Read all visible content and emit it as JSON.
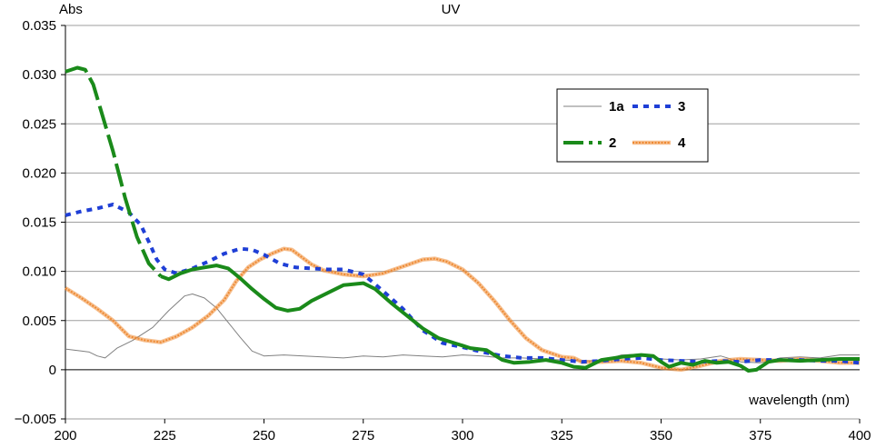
{
  "chart_data": {
    "type": "line",
    "title": "UV",
    "ylabel": "Abs",
    "xlabel": "wavelength (nm)",
    "xlim": [
      200,
      400
    ],
    "ylim": [
      -0.005,
      0.035
    ],
    "x_ticks": [
      200,
      225,
      250,
      275,
      300,
      325,
      350,
      375,
      400
    ],
    "y_ticks": [
      -0.005,
      0,
      0.005,
      0.01,
      0.015,
      0.02,
      0.025,
      0.03,
      0.035
    ],
    "x_tick_labels": [
      "200",
      "225",
      "250",
      "275",
      "300",
      "325",
      "350",
      "375",
      "400"
    ],
    "y_tick_labels": [
      "−0.005",
      "0",
      "0.005",
      "0.010",
      "0.015",
      "0.020",
      "0.025",
      "0.030",
      "0.035"
    ],
    "grid": "horizontal",
    "legend_position": "top-right",
    "series": [
      {
        "name": "1a",
        "color": "#808080",
        "style": "thin-solid",
        "points": [
          [
            200,
            0.0021
          ],
          [
            204,
            0.0019
          ],
          [
            206,
            0.0018
          ],
          [
            208,
            0.0014
          ],
          [
            210,
            0.0012
          ],
          [
            213,
            0.0022
          ],
          [
            217,
            0.003
          ],
          [
            222,
            0.0043
          ],
          [
            226,
            0.006
          ],
          [
            230,
            0.0075
          ],
          [
            232,
            0.0077
          ],
          [
            235,
            0.0073
          ],
          [
            238,
            0.0063
          ],
          [
            241,
            0.0048
          ],
          [
            244,
            0.0033
          ],
          [
            247,
            0.0019
          ],
          [
            250,
            0.0014
          ],
          [
            255,
            0.0015
          ],
          [
            260,
            0.0014
          ],
          [
            270,
            0.0012
          ],
          [
            275,
            0.0014
          ],
          [
            280,
            0.0013
          ],
          [
            285,
            0.0015
          ],
          [
            290,
            0.0014
          ],
          [
            295,
            0.0013
          ],
          [
            300,
            0.0015
          ],
          [
            305,
            0.0014
          ],
          [
            310,
            0.0012
          ],
          [
            315,
            0.0012
          ],
          [
            320,
            0.0011
          ],
          [
            325,
            0.001
          ],
          [
            330,
            0.0009
          ],
          [
            335,
            0.0009
          ],
          [
            340,
            0.0015
          ],
          [
            345,
            0.0016
          ],
          [
            350,
            0.0011
          ],
          [
            355,
            0.001
          ],
          [
            360,
            0.0011
          ],
          [
            365,
            0.0014
          ],
          [
            370,
            0.0008
          ],
          [
            375,
            0.0007
          ],
          [
            380,
            0.0012
          ],
          [
            385,
            0.0013
          ],
          [
            390,
            0.0012
          ],
          [
            395,
            0.0015
          ],
          [
            400,
            0.0015
          ]
        ]
      },
      {
        "name": "2",
        "color": "#1a8a1a",
        "style": "thick-dash-then-solid",
        "points": [
          [
            200,
            0.0303
          ],
          [
            203,
            0.0307
          ],
          [
            205,
            0.0305
          ],
          [
            207,
            0.029
          ],
          [
            209,
            0.0263
          ],
          [
            212,
            0.0222
          ],
          [
            215,
            0.0175
          ],
          [
            218,
            0.0135
          ],
          [
            221,
            0.0108
          ],
          [
            224,
            0.0095
          ],
          [
            226,
            0.0092
          ],
          [
            229,
            0.0098
          ],
          [
            232,
            0.0102
          ],
          [
            235,
            0.0104
          ],
          [
            238,
            0.0106
          ],
          [
            241,
            0.0103
          ],
          [
            244,
            0.0093
          ],
          [
            247,
            0.0082
          ],
          [
            250,
            0.0072
          ],
          [
            253,
            0.0063
          ],
          [
            256,
            0.006
          ],
          [
            259,
            0.0062
          ],
          [
            262,
            0.007
          ],
          [
            266,
            0.0078
          ],
          [
            270,
            0.0086
          ],
          [
            275,
            0.0088
          ],
          [
            278,
            0.0082
          ],
          [
            282,
            0.0068
          ],
          [
            286,
            0.0055
          ],
          [
            290,
            0.0042
          ],
          [
            294,
            0.0032
          ],
          [
            298,
            0.0027
          ],
          [
            302,
            0.0022
          ],
          [
            306,
            0.002
          ],
          [
            310,
            0.001
          ],
          [
            313,
            0.0007
          ],
          [
            317,
            0.0008
          ],
          [
            321,
            0.001
          ],
          [
            325,
            0.0007
          ],
          [
            328,
            0.0003
          ],
          [
            331,
            0.0002
          ],
          [
            335,
            0.001
          ],
          [
            340,
            0.0013
          ],
          [
            345,
            0.0015
          ],
          [
            348,
            0.0014
          ],
          [
            350,
            0.0008
          ],
          [
            352,
            0.0003
          ],
          [
            355,
            0.0007
          ],
          [
            358,
            0.0005
          ],
          [
            361,
            0.0009
          ],
          [
            364,
            0.0007
          ],
          [
            367,
            0.0008
          ],
          [
            370,
            0.0004
          ],
          [
            372,
            -0.0001
          ],
          [
            374,
            0.0
          ],
          [
            377,
            0.0008
          ],
          [
            380,
            0.001
          ],
          [
            385,
            0.0009
          ],
          [
            390,
            0.001
          ],
          [
            395,
            0.0011
          ],
          [
            400,
            0.0011
          ]
        ]
      },
      {
        "name": "3",
        "color": "#1f3fd6",
        "style": "dotted",
        "points": [
          [
            200,
            0.0157
          ],
          [
            204,
            0.0161
          ],
          [
            208,
            0.0164
          ],
          [
            212,
            0.0168
          ],
          [
            216,
            0.016
          ],
          [
            219,
            0.0147
          ],
          [
            221,
            0.013
          ],
          [
            223,
            0.0112
          ],
          [
            225,
            0.0102
          ],
          [
            228,
            0.0098
          ],
          [
            232,
            0.0103
          ],
          [
            236,
            0.011
          ],
          [
            240,
            0.0118
          ],
          [
            244,
            0.0123
          ],
          [
            247,
            0.0122
          ],
          [
            250,
            0.0117
          ],
          [
            254,
            0.0108
          ],
          [
            258,
            0.0104
          ],
          [
            262,
            0.0103
          ],
          [
            266,
            0.0102
          ],
          [
            270,
            0.0102
          ],
          [
            275,
            0.0097
          ],
          [
            280,
            0.008
          ],
          [
            285,
            0.0062
          ],
          [
            290,
            0.004
          ],
          [
            295,
            0.0027
          ],
          [
            300,
            0.0023
          ],
          [
            305,
            0.0018
          ],
          [
            310,
            0.0014
          ],
          [
            315,
            0.0012
          ],
          [
            320,
            0.0012
          ],
          [
            325,
            0.001
          ],
          [
            330,
            0.0008
          ],
          [
            335,
            0.0009
          ],
          [
            340,
            0.0011
          ],
          [
            345,
            0.0012
          ],
          [
            350,
            0.001
          ],
          [
            355,
            0.0009
          ],
          [
            360,
            0.0008
          ],
          [
            365,
            0.0009
          ],
          [
            370,
            0.0008
          ],
          [
            375,
            0.001
          ],
          [
            380,
            0.001
          ],
          [
            385,
            0.001
          ],
          [
            390,
            0.0009
          ],
          [
            395,
            0.0009
          ],
          [
            400,
            0.0007
          ]
        ]
      },
      {
        "name": "4",
        "color": "#ee8a33",
        "style": "thick-fuzzy",
        "points": [
          [
            200,
            0.0083
          ],
          [
            204,
            0.0073
          ],
          [
            208,
            0.0062
          ],
          [
            212,
            0.005
          ],
          [
            216,
            0.0034
          ],
          [
            220,
            0.003
          ],
          [
            224,
            0.0028
          ],
          [
            228,
            0.0034
          ],
          [
            232,
            0.0043
          ],
          [
            236,
            0.0055
          ],
          [
            240,
            0.0071
          ],
          [
            243,
            0.009
          ],
          [
            246,
            0.0104
          ],
          [
            249,
            0.0112
          ],
          [
            252,
            0.0118
          ],
          [
            255,
            0.0123
          ],
          [
            257,
            0.0122
          ],
          [
            259,
            0.0116
          ],
          [
            262,
            0.0107
          ],
          [
            265,
            0.0101
          ],
          [
            270,
            0.0097
          ],
          [
            275,
            0.0095
          ],
          [
            280,
            0.0098
          ],
          [
            285,
            0.0105
          ],
          [
            290,
            0.0112
          ],
          [
            293,
            0.0113
          ],
          [
            296,
            0.011
          ],
          [
            300,
            0.0102
          ],
          [
            304,
            0.0088
          ],
          [
            308,
            0.007
          ],
          [
            312,
            0.005
          ],
          [
            316,
            0.0032
          ],
          [
            320,
            0.002
          ],
          [
            325,
            0.0013
          ],
          [
            328,
            0.0012
          ],
          [
            330,
            0.0008
          ],
          [
            335,
            0.0008
          ],
          [
            340,
            0.0009
          ],
          [
            345,
            0.0007
          ],
          [
            350,
            0.0002
          ],
          [
            355,
            0.0
          ],
          [
            360,
            0.0004
          ],
          [
            365,
            0.0009
          ],
          [
            370,
            0.0011
          ],
          [
            375,
            0.001
          ],
          [
            380,
            0.0009
          ],
          [
            385,
            0.0011
          ],
          [
            390,
            0.0009
          ],
          [
            395,
            0.0007
          ],
          [
            400,
            0.0007
          ]
        ]
      }
    ]
  }
}
